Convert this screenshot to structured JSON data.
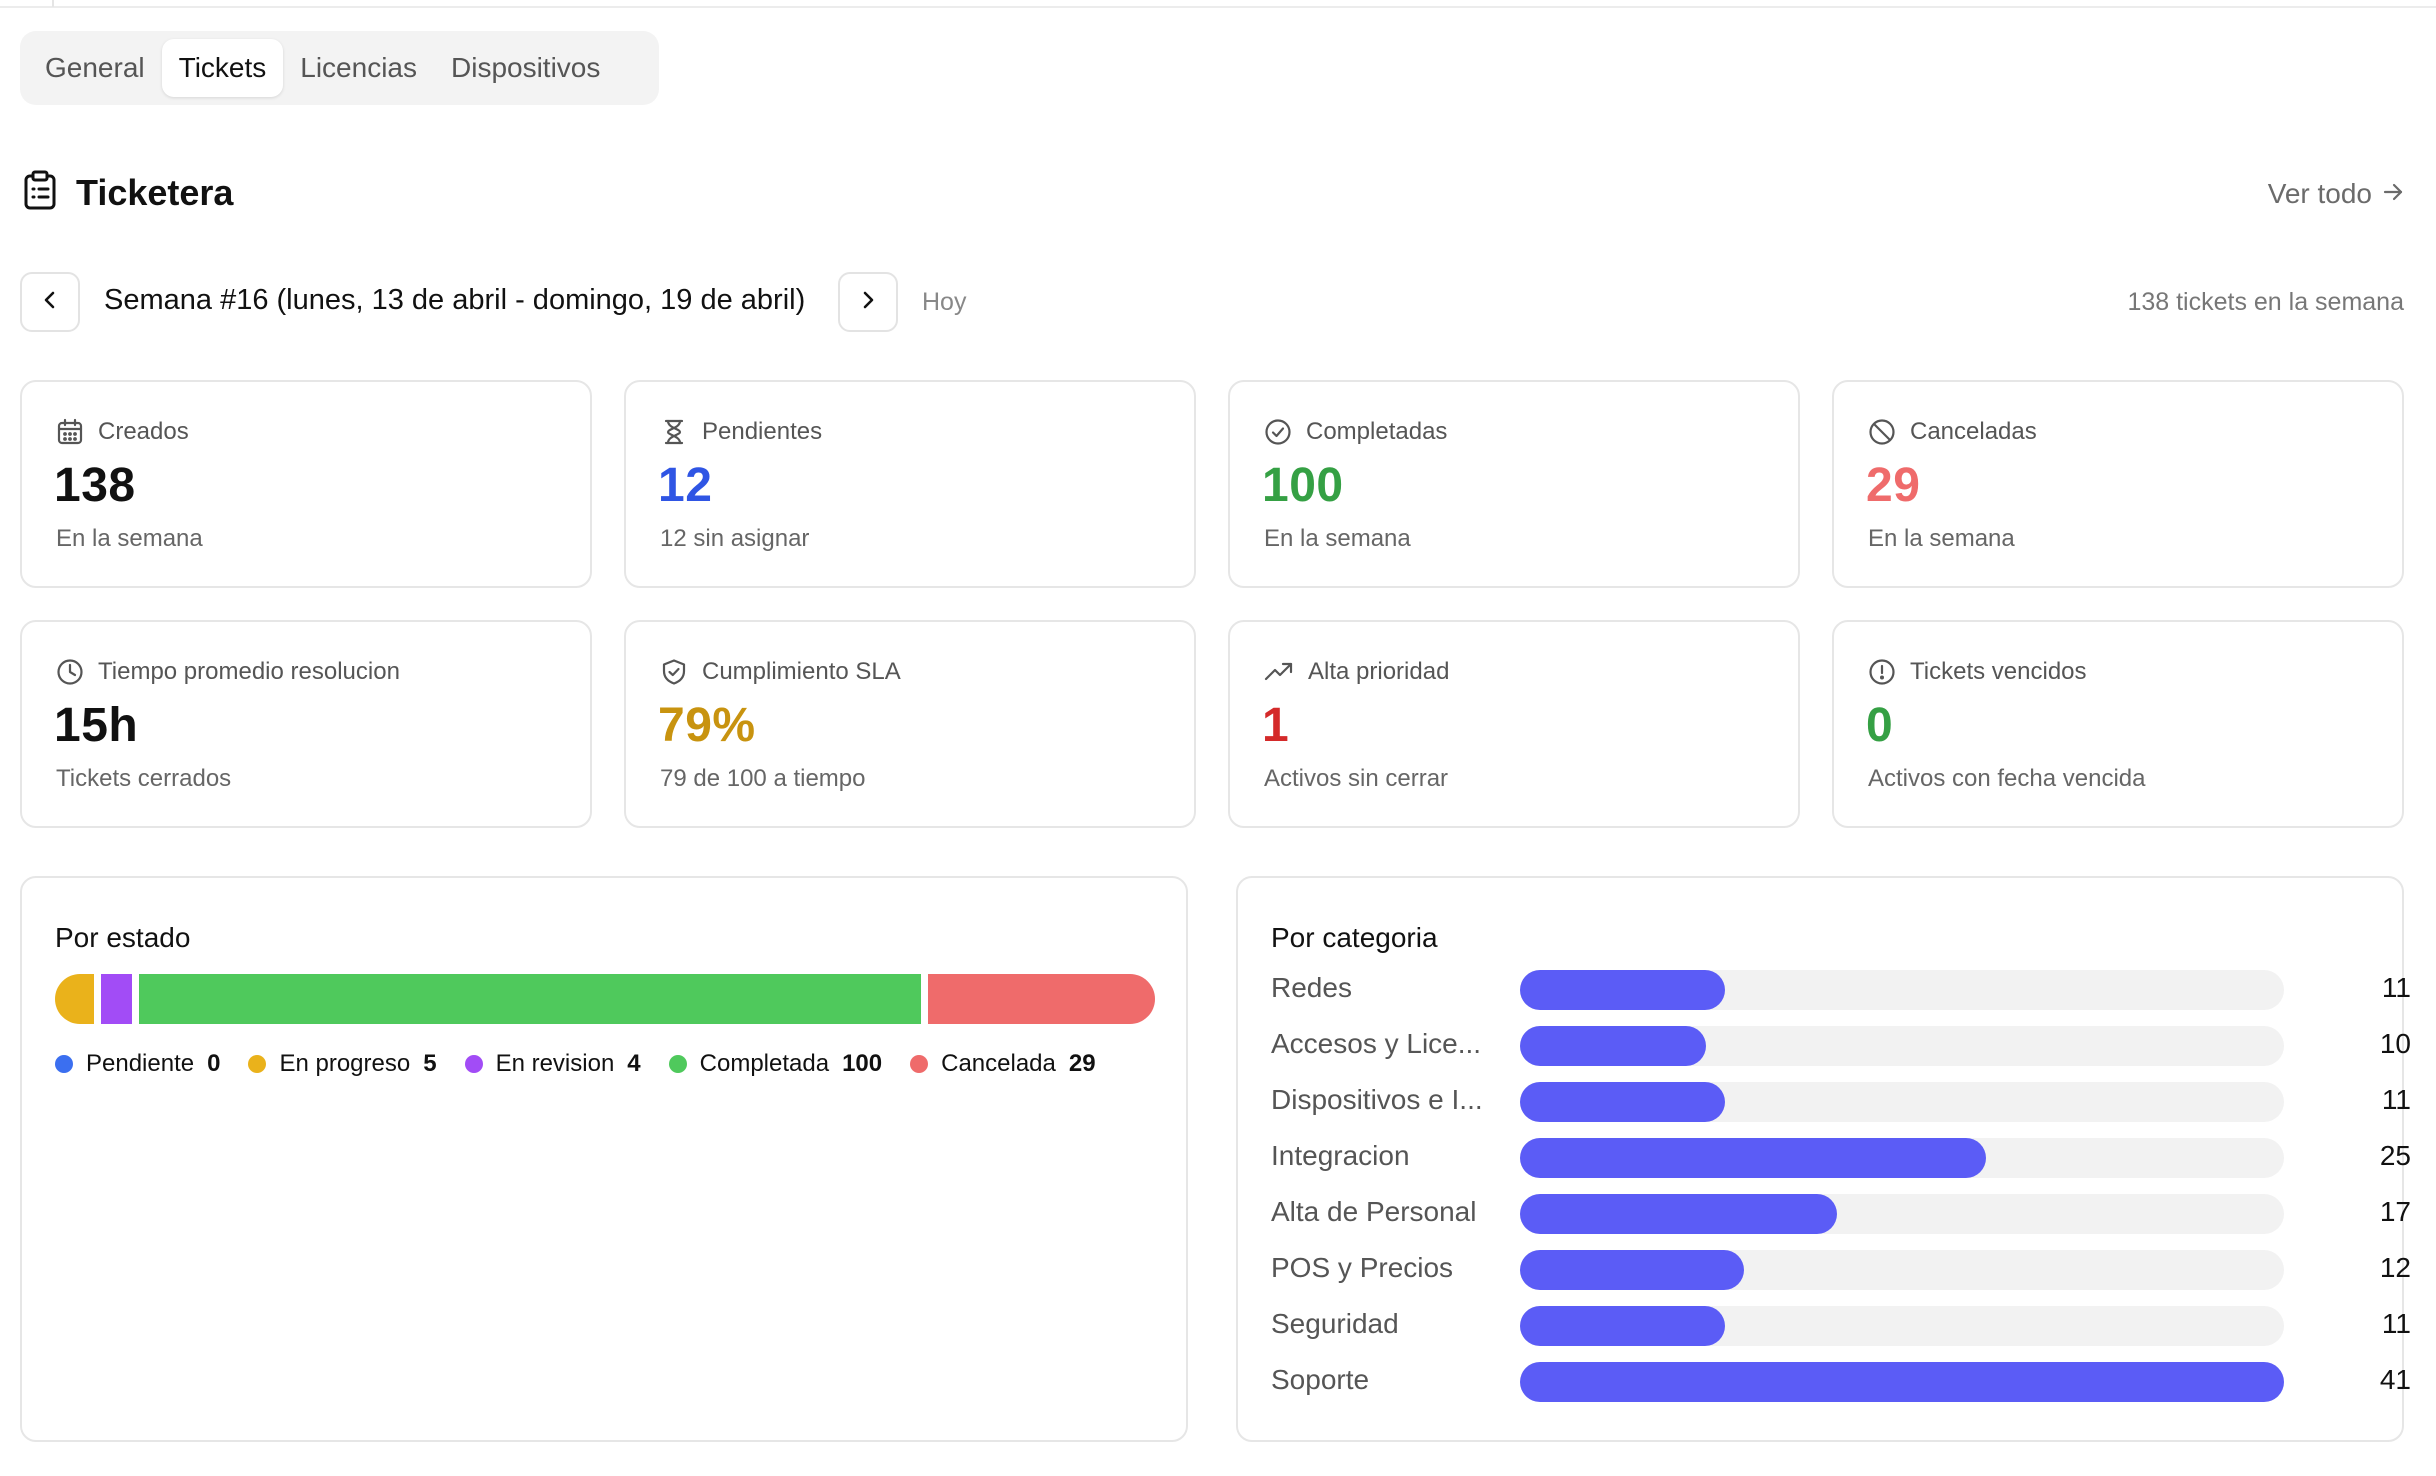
{
  "tabs": [
    {
      "label": "General",
      "active": false
    },
    {
      "label": "Tickets",
      "active": true
    },
    {
      "label": "Licencias",
      "active": false
    },
    {
      "label": "Dispositivos",
      "active": false
    }
  ],
  "header": {
    "title": "Ticketera",
    "icon": "clipboard-icon",
    "view_all": "Ver todo",
    "view_all_icon": "arrow-right-icon"
  },
  "week": {
    "label": "Semana #16 (lunes, 13 de abril - domingo, 19 de abril)",
    "today": "Hoy",
    "count_text": "138 tickets en la semana",
    "prev_icon": "chevron-left-icon",
    "next_icon": "chevron-right-icon"
  },
  "stats": [
    {
      "label": "Creados",
      "value": "138",
      "sub": "En la semana",
      "icon": "calendar-icon",
      "color": "#111111"
    },
    {
      "label": "Pendientes",
      "value": "12",
      "sub": "12 sin asignar",
      "icon": "hourglass-icon",
      "color": "#2f55e4"
    },
    {
      "label": "Completadas",
      "value": "100",
      "sub": "En la semana",
      "icon": "check-circle-icon",
      "color": "#35a044"
    },
    {
      "label": "Canceladas",
      "value": "29",
      "sub": "En la semana",
      "icon": "ban-icon",
      "color": "#ef6b6b"
    },
    {
      "label": "Tiempo promedio resolucion",
      "value": "15h",
      "sub": "Tickets cerrados",
      "icon": "clock-icon",
      "color": "#111111"
    },
    {
      "label": "Cumplimiento SLA",
      "value": "79%",
      "sub": "79 de 100 a tiempo",
      "icon": "shield-check-icon",
      "color": "#c8930f"
    },
    {
      "label": "Alta prioridad",
      "value": "1",
      "sub": "Activos sin cerrar",
      "icon": "trending-up-icon",
      "color": "#d42a2a"
    },
    {
      "label": "Tickets vencidos",
      "value": "0",
      "sub": "Activos con fecha vencida",
      "icon": "alert-circle-icon",
      "color": "#35a044"
    }
  ],
  "por_estado": {
    "title": "Por estado",
    "items": [
      {
        "label": "Pendiente",
        "value": 0,
        "color": "#3b6ff0"
      },
      {
        "label": "En progreso",
        "value": 5,
        "color": "#eab21b"
      },
      {
        "label": "En revision",
        "value": 4,
        "color": "#a24cf6"
      },
      {
        "label": "Completada",
        "value": 100,
        "color": "#4fc95c"
      },
      {
        "label": "Cancelada",
        "value": 29,
        "color": "#ef6b6b"
      }
    ]
  },
  "por_categoria": {
    "title": "Por categoria",
    "max": 41,
    "bar_color": "#5b5cf6",
    "items": [
      {
        "label": "Redes",
        "value": 11
      },
      {
        "label": "Accesos y Lice...",
        "value": 10
      },
      {
        "label": "Dispositivos e I...",
        "value": 11
      },
      {
        "label": "Integracion",
        "value": 25
      },
      {
        "label": "Alta de Personal",
        "value": 17
      },
      {
        "label": "POS y Precios",
        "value": 12
      },
      {
        "label": "Seguridad",
        "value": 11
      },
      {
        "label": "Soporte",
        "value": 41
      }
    ]
  }
}
